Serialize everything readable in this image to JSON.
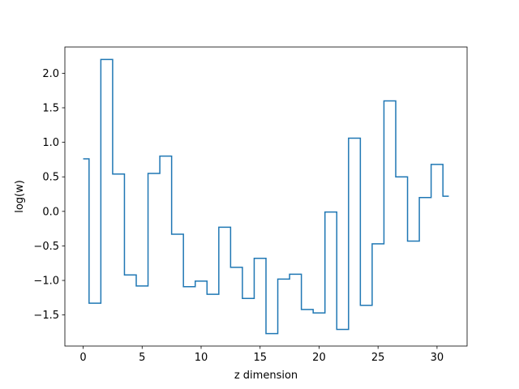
{
  "chart_data": {
    "type": "line",
    "drawstyle": "steps-mid",
    "xlabel": "z dimension",
    "ylabel": "log(w)",
    "xlim": [
      -1.55,
      32.55
    ],
    "ylim": [
      -1.95,
      2.38
    ],
    "x_ticks": [
      0,
      5,
      10,
      15,
      20,
      25,
      30
    ],
    "y_ticks": [
      -1.5,
      -1.0,
      -0.5,
      0.0,
      0.5,
      1.0,
      1.5,
      2.0
    ],
    "x_tick_labels": [
      "0",
      "5",
      "10",
      "15",
      "20",
      "25",
      "30"
    ],
    "y_tick_labels": [
      "−1.5",
      "−1.0",
      "−0.5",
      "0.0",
      "0.5",
      "1.0",
      "1.5",
      "2.0"
    ],
    "grid": false,
    "legend": "none",
    "series_color": "#1f77b4",
    "x": [
      0,
      1,
      2,
      3,
      4,
      5,
      6,
      7,
      8,
      9,
      10,
      11,
      12,
      13,
      14,
      15,
      16,
      17,
      18,
      19,
      20,
      21,
      22,
      23,
      24,
      25,
      26,
      27,
      28,
      29,
      30,
      31
    ],
    "y": [
      0.76,
      -1.33,
      2.2,
      0.54,
      -0.92,
      -1.08,
      0.55,
      0.8,
      -0.33,
      -1.09,
      -1.01,
      -1.2,
      -0.23,
      -0.81,
      -1.26,
      -0.68,
      -1.77,
      -0.98,
      -0.91,
      -1.42,
      -1.47,
      -0.01,
      -1.71,
      1.06,
      -1.36,
      -0.47,
      1.6,
      0.5,
      -0.43,
      0.2,
      0.68,
      0.22
    ]
  }
}
